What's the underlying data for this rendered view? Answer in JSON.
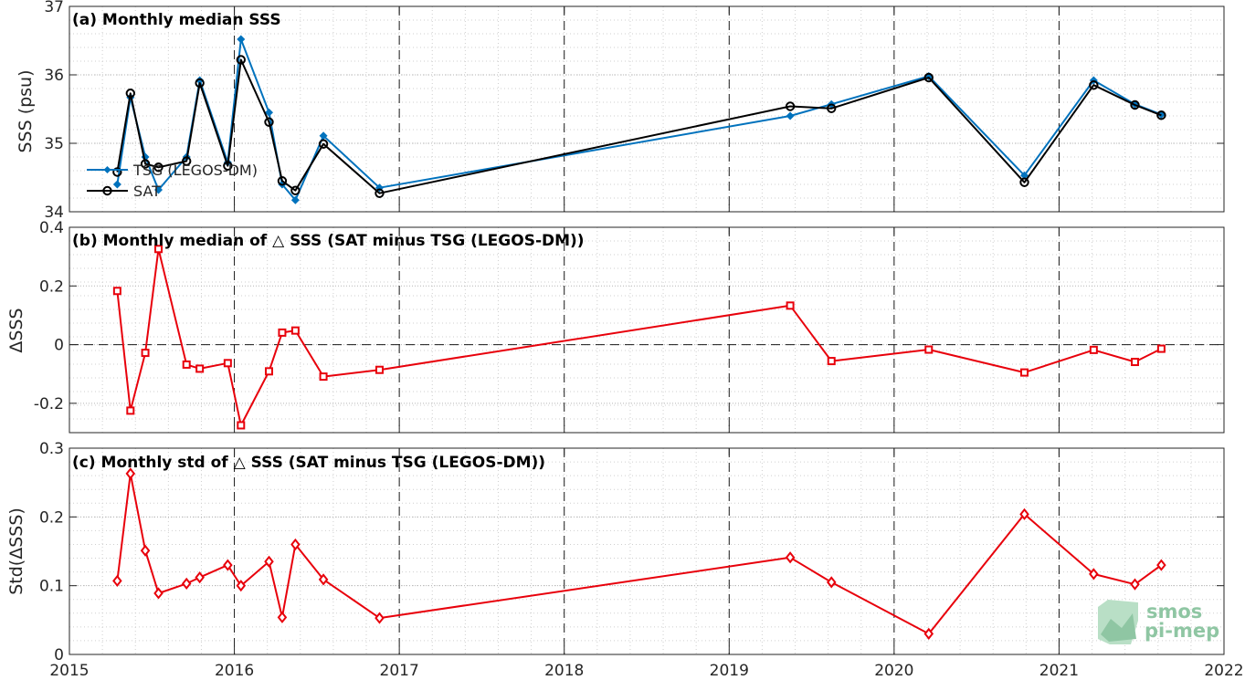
{
  "colors": {
    "tsg": "#0072BD",
    "sat": "#000000",
    "diff": "#E8000B",
    "logo": "#8fc6a3"
  },
  "logo": {
    "line1": "smos",
    "line2": "pi-mep"
  },
  "x_axis": {
    "ticks": [
      2015,
      2016,
      2017,
      2018,
      2019,
      2020,
      2021,
      2022
    ],
    "tick_labels": [
      "2015",
      "2016",
      "2017",
      "2018",
      "2019",
      "2020",
      "2021",
      "2022"
    ],
    "xlim": [
      2015,
      2022
    ],
    "year_dashes": [
      2016,
      2017,
      2018,
      2019,
      2020,
      2021
    ]
  },
  "chart_data": [
    {
      "type": "line",
      "id": "a",
      "title": "(a) Monthly median SSS",
      "ylabel": "SSS (psu)",
      "ylim": [
        34,
        37
      ],
      "yticks": [
        34,
        35,
        36,
        37
      ],
      "ytick_labels": [
        "34",
        "35",
        "36",
        "37"
      ],
      "grid": true,
      "legend": "left",
      "series": [
        {
          "name": "TSG (LEGOS-DM)",
          "marker": "diamond",
          "x": [
            2015.29,
            2015.37,
            2015.46,
            2015.54,
            2015.71,
            2015.79,
            2015.96,
            2016.04,
            2016.21,
            2016.29,
            2016.37,
            2016.54,
            2016.88,
            2019.37,
            2019.62,
            2020.21,
            2020.79,
            2021.21,
            2021.46,
            2021.62
          ],
          "y": [
            34.4,
            35.67,
            34.8,
            34.32,
            34.8,
            35.92,
            34.72,
            36.52,
            35.45,
            34.4,
            34.17,
            35.11,
            34.35,
            35.4,
            35.57,
            35.98,
            34.53,
            35.92,
            35.57,
            35.42
          ]
        },
        {
          "name": "SAT",
          "marker": "circle",
          "x": [
            2015.29,
            2015.37,
            2015.46,
            2015.54,
            2015.71,
            2015.79,
            2015.96,
            2016.04,
            2016.21,
            2016.29,
            2016.37,
            2016.54,
            2016.88,
            2019.37,
            2019.62,
            2020.21,
            2020.79,
            2021.21,
            2021.46,
            2021.62
          ],
          "y": [
            34.58,
            35.73,
            34.7,
            34.65,
            34.74,
            35.88,
            34.67,
            36.22,
            35.31,
            34.45,
            34.31,
            34.99,
            34.27,
            35.54,
            35.51,
            35.96,
            34.43,
            35.85,
            35.56,
            35.41
          ]
        }
      ]
    },
    {
      "type": "line",
      "id": "b",
      "title": "(b) Monthly median of △ SSS (SAT minus TSG (LEGOS-DM))",
      "ylabel": "ΔSSS",
      "ylim": [
        -0.3,
        0.4
      ],
      "yticks": [
        -0.2,
        0,
        0.2,
        0.4
      ],
      "ytick_labels": [
        "-0.2",
        "0",
        "0.2",
        "0.4"
      ],
      "grid": true,
      "zero_line": true,
      "series": [
        {
          "marker": "square",
          "x": [
            2015.29,
            2015.37,
            2015.46,
            2015.54,
            2015.71,
            2015.79,
            2015.96,
            2016.04,
            2016.21,
            2016.29,
            2016.37,
            2016.54,
            2016.88,
            2019.37,
            2019.62,
            2020.21,
            2020.79,
            2021.21,
            2021.46,
            2021.62
          ],
          "y": [
            0.183,
            -0.225,
            -0.028,
            0.326,
            -0.068,
            -0.082,
            -0.063,
            -0.275,
            -0.091,
            0.041,
            0.048,
            -0.109,
            -0.086,
            0.133,
            -0.056,
            -0.017,
            -0.095,
            -0.018,
            -0.059,
            -0.014
          ]
        }
      ]
    },
    {
      "type": "line",
      "id": "c",
      "title": "(c) Monthly std of △ SSS (SAT minus TSG (LEGOS-DM))",
      "ylabel": "Std(ΔSSS)",
      "ylim": [
        0,
        0.3
      ],
      "yticks": [
        0,
        0.1,
        0.2,
        0.3
      ],
      "ytick_labels": [
        "0",
        "0.1",
        "0.2",
        "0.3"
      ],
      "grid": true,
      "series": [
        {
          "marker": "diamond-open",
          "x": [
            2015.29,
            2015.37,
            2015.46,
            2015.54,
            2015.71,
            2015.79,
            2015.96,
            2016.04,
            2016.21,
            2016.29,
            2016.37,
            2016.54,
            2016.88,
            2019.37,
            2019.62,
            2020.21,
            2020.79,
            2021.21,
            2021.46,
            2021.62
          ],
          "y": [
            0.107,
            0.263,
            0.151,
            0.089,
            0.103,
            0.112,
            0.13,
            0.1,
            0.135,
            0.054,
            0.16,
            0.109,
            0.053,
            0.141,
            0.105,
            0.03,
            0.204,
            0.117,
            0.102,
            0.13
          ]
        }
      ]
    }
  ]
}
